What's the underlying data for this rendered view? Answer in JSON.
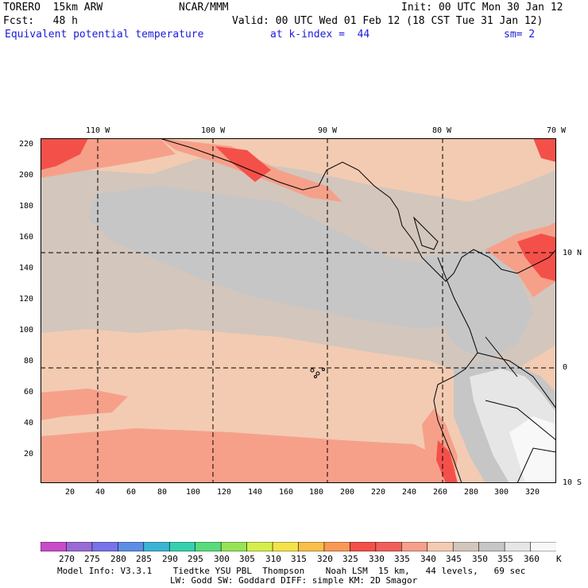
{
  "header": {
    "model": "TORERO  15km ARW",
    "org": "NCAR/MMM",
    "init": "Init: 00 UTC Mon 30 Jan 12",
    "fcst": "Fcst:   48 h",
    "valid": "Valid: 00 UTC Wed 01 Feb 12 (18 CST Tue 31 Jan 12)",
    "field": "Equivalent potential temperature",
    "level": "at k-index =  44",
    "smooth": "sm= 2"
  },
  "axes": {
    "top_lon": [
      "110 W",
      "100 W",
      "90 W",
      "80 W",
      "70 W"
    ],
    "right_lat": [
      "10 N",
      "0",
      "10 S"
    ],
    "left_y": [
      "220",
      "200",
      "180",
      "160",
      "140",
      "120",
      "100",
      "80",
      "60",
      "40",
      "20"
    ],
    "bottom_x": [
      "20",
      "40",
      "60",
      "80",
      "100",
      "120",
      "140",
      "160",
      "180",
      "200",
      "220",
      "240",
      "260",
      "280",
      "300",
      "320"
    ]
  },
  "colorbar": {
    "labels": [
      "270",
      "275",
      "280",
      "285",
      "290",
      "295",
      "300",
      "305",
      "310",
      "315",
      "320",
      "325",
      "330",
      "335",
      "340",
      "345",
      "350",
      "355",
      "360"
    ],
    "unit": "K",
    "colors": [
      "#c84cc8",
      "#9a6ad6",
      "#7a72e8",
      "#5c8ee6",
      "#3cb4d6",
      "#36d0b0",
      "#58dc7c",
      "#96e456",
      "#d6ee4c",
      "#f4e24a",
      "#f8c048",
      "#f89a56",
      "#f4504a",
      "#f0605a",
      "#f6a08a",
      "#f2cbb2",
      "#d3c6bc",
      "#c6c6c6",
      "#e6e6e6",
      "#f8f8f8"
    ]
  },
  "footer": {
    "line1": "Model Info: V3.3.1    Tiedtke YSU PBL  Thompson    Noah LSM  15 km,   44 levels,   69 sec",
    "line2": "LW: Godd SW: Goddard DIFF: simple KM: 2D Smagor"
  }
}
